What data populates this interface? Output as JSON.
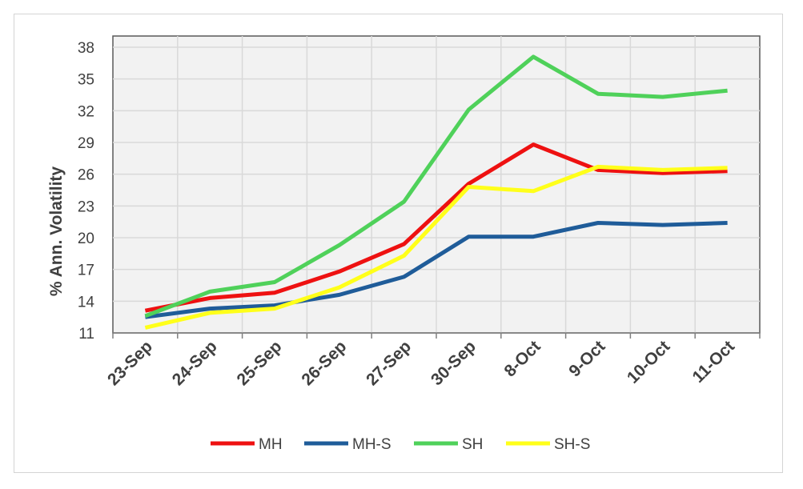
{
  "chart_data": {
    "type": "line",
    "title": "",
    "xlabel": "",
    "ylabel": "% Ann. Volatility",
    "categories": [
      "23-Sep",
      "24-Sep",
      "25-Sep",
      "26-Sep",
      "27-Sep",
      "30-Sep",
      "8-Oct",
      "9-Oct",
      "10-Oct",
      "11-Oct"
    ],
    "yticks": [
      11,
      14,
      17,
      20,
      23,
      26,
      29,
      32,
      35,
      38
    ],
    "ylim": [
      11,
      38
    ],
    "grid": true,
    "legend_position": "bottom",
    "series": [
      {
        "name": "MH",
        "color": "#ee1111",
        "values": [
          13.1,
          14.3,
          14.8,
          16.8,
          19.4,
          25.1,
          28.8,
          26.4,
          26.1,
          26.3
        ]
      },
      {
        "name": "MH-S",
        "color": "#1f5c99",
        "values": [
          12.5,
          13.3,
          13.6,
          14.6,
          16.3,
          20.1,
          20.1,
          21.4,
          21.2,
          21.4
        ]
      },
      {
        "name": "SH",
        "color": "#4fd15a",
        "values": [
          12.6,
          14.9,
          15.8,
          19.3,
          23.4,
          32.1,
          37.1,
          33.6,
          33.3,
          33.9
        ]
      },
      {
        "name": "SH-S",
        "color": "#ffff1a",
        "values": [
          11.5,
          12.9,
          13.3,
          15.3,
          18.3,
          24.8,
          24.4,
          26.7,
          26.4,
          26.6
        ]
      }
    ]
  }
}
